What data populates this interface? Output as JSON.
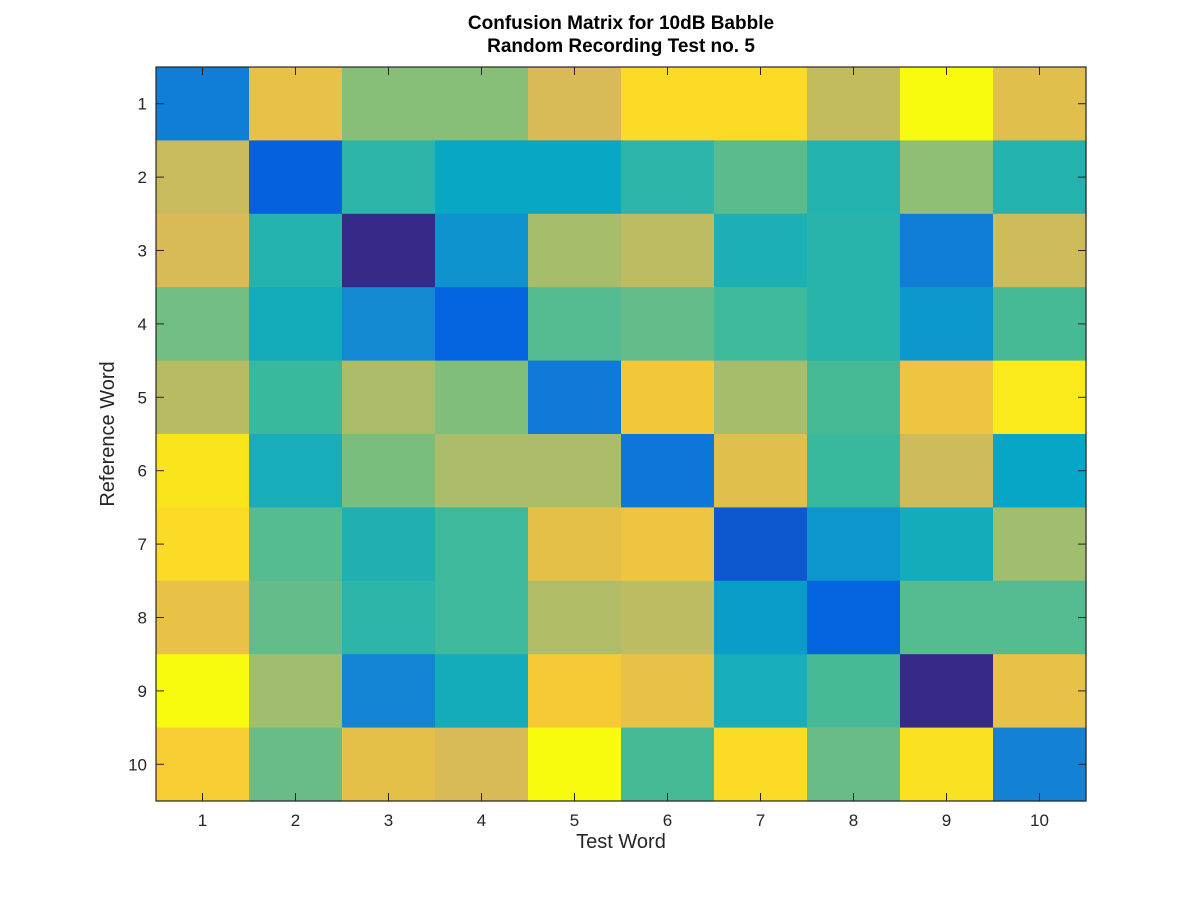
{
  "chart_data": {
    "type": "heatmap",
    "title": "Confusion Matrix for 10dB Babble",
    "subtitle": "Random Recording Test no. 5",
    "xlabel": "Test Word",
    "ylabel": "Reference Word",
    "x_categories": [
      "1",
      "2",
      "3",
      "4",
      "5",
      "6",
      "7",
      "8",
      "9",
      "10"
    ],
    "y_categories": [
      "1",
      "2",
      "3",
      "4",
      "5",
      "6",
      "7",
      "8",
      "9",
      "10"
    ],
    "colormap": "parula",
    "colormap_stops": [
      "#352a87",
      "#0363e1",
      "#1485d4",
      "#06a7c6",
      "#38b99e",
      "#92bf73",
      "#d9ba56",
      "#fcce2e",
      "#f9fb0e"
    ],
    "grid": false,
    "values": [
      [
        0.22,
        0.8,
        0.61,
        0.61,
        0.75,
        0.91,
        0.91,
        0.71,
        1.0,
        0.78
      ],
      [
        0.72,
        0.12,
        0.47,
        0.38,
        0.38,
        0.47,
        0.55,
        0.45,
        0.62,
        0.45
      ],
      [
        0.75,
        0.45,
        0.0,
        0.3,
        0.66,
        0.7,
        0.43,
        0.46,
        0.22,
        0.73
      ],
      [
        0.58,
        0.41,
        0.26,
        0.13,
        0.54,
        0.56,
        0.51,
        0.46,
        0.32,
        0.52
      ],
      [
        0.69,
        0.5,
        0.67,
        0.6,
        0.21,
        0.84,
        0.66,
        0.52,
        0.82,
        0.95
      ],
      [
        0.94,
        0.42,
        0.59,
        0.67,
        0.67,
        0.2,
        0.78,
        0.5,
        0.73,
        0.37
      ],
      [
        0.91,
        0.54,
        0.44,
        0.51,
        0.79,
        0.82,
        0.1,
        0.31,
        0.41,
        0.65
      ],
      [
        0.8,
        0.56,
        0.47,
        0.51,
        0.68,
        0.7,
        0.34,
        0.13,
        0.54,
        0.54
      ],
      [
        1.0,
        0.65,
        0.25,
        0.41,
        0.85,
        0.8,
        0.42,
        0.52,
        0.0,
        0.8
      ],
      [
        0.86,
        0.57,
        0.79,
        0.75,
        1.0,
        0.52,
        0.91,
        0.57,
        0.93,
        0.24
      ]
    ]
  }
}
